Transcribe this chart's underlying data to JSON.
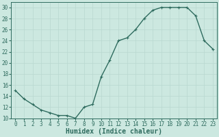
{
  "x": [
    0,
    1,
    2,
    3,
    4,
    5,
    6,
    7,
    8,
    9,
    10,
    11,
    12,
    13,
    14,
    15,
    16,
    17,
    18,
    19,
    20,
    21,
    22,
    23
  ],
  "y": [
    15,
    13.5,
    12.5,
    11.5,
    11,
    10.5,
    10.5,
    10,
    12,
    12.5,
    17.5,
    20.5,
    24,
    24.5,
    26,
    28,
    29.5,
    30,
    30,
    30,
    30,
    28.5,
    24,
    22.5
  ],
  "line_color": "#2e6b5e",
  "bg_color": "#cce8e0",
  "grid_color": "#b8d8d0",
  "xlabel": "Humidex (Indice chaleur)",
  "ylim": [
    10,
    31
  ],
  "xlim": [
    -0.5,
    23.5
  ],
  "yticks": [
    10,
    12,
    14,
    16,
    18,
    20,
    22,
    24,
    26,
    28,
    30
  ],
  "xticks": [
    0,
    1,
    2,
    3,
    4,
    5,
    6,
    7,
    8,
    9,
    10,
    11,
    12,
    13,
    14,
    15,
    16,
    17,
    18,
    19,
    20,
    21,
    22,
    23
  ],
  "marker": "+",
  "markersize": 3.5,
  "linewidth": 1.0,
  "xlabel_fontsize": 7,
  "tick_fontsize": 5.5
}
